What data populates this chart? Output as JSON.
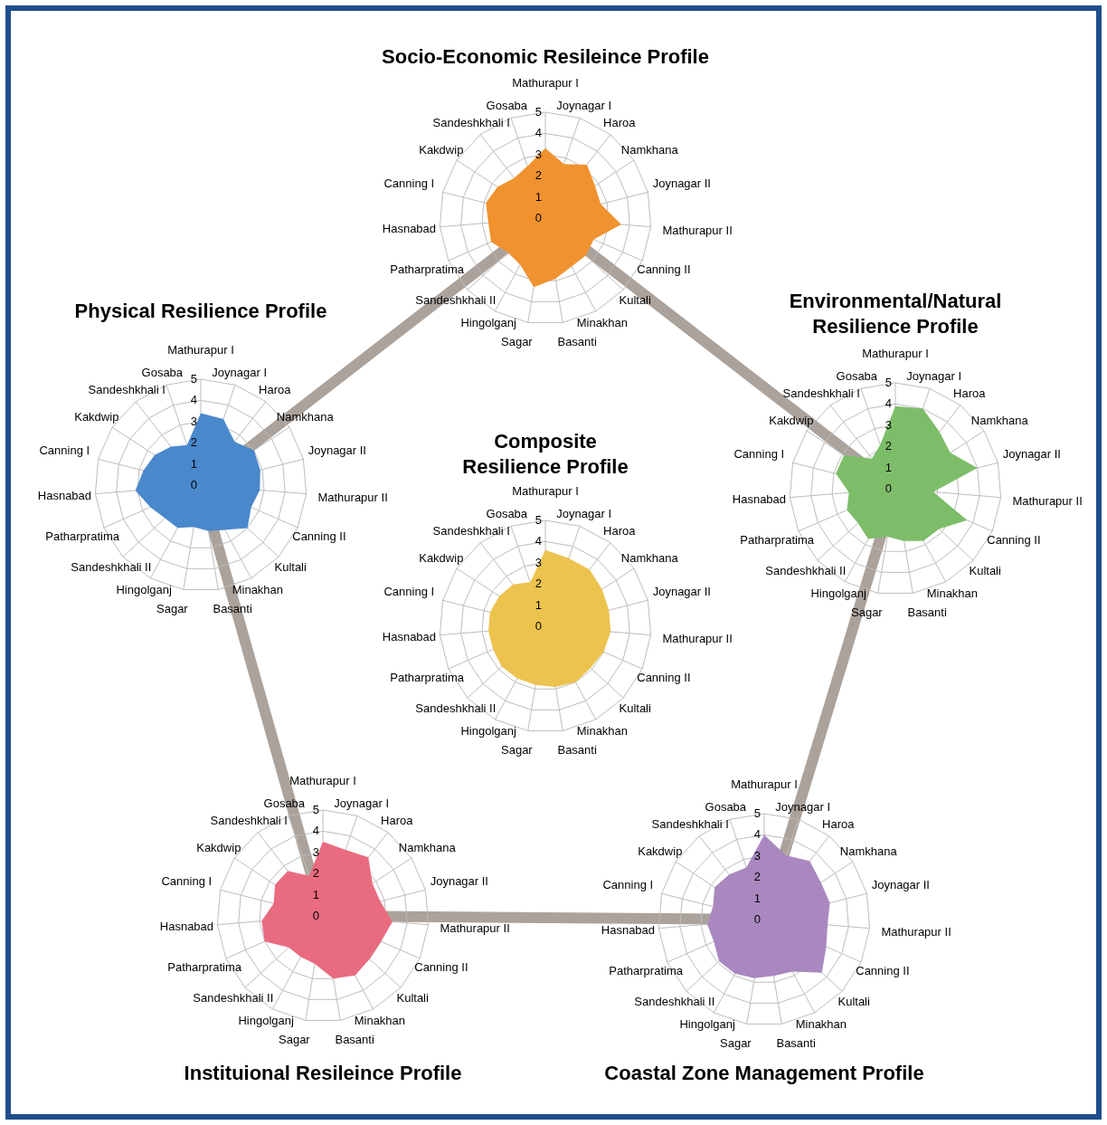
{
  "chart_data": [
    {
      "type": "radar",
      "title": "Socio-Economic Resileince Profile",
      "categories": [
        "Mathurapur I",
        "Joynagar I",
        "Haroa",
        "Namkhana",
        "Joynagar II",
        "Mathurapur II",
        "Canning II",
        "Kultali",
        "Minakhan",
        "Basanti",
        "Sagar",
        "Hingolganj",
        "Sandeshkhali II",
        "Patharpratima",
        "Hasnabad",
        "Canning I",
        "Kakdwip",
        "Sandeshkhali I",
        "Gosaba"
      ],
      "ylim": [
        0,
        5
      ],
      "yticks": [
        0,
        1,
        2,
        3,
        4,
        5
      ],
      "grid": true,
      "series": [
        {
          "color": "#f0922f",
          "values": [
            3.3,
            2.7,
            3.2,
            2.8,
            2.7,
            3.6,
            2.5,
            2.6,
            2.6,
            2.9,
            3.3,
            2.5,
            2.4,
            2.8,
            2.7,
            2.9,
            2.7,
            2.4,
            2.6
          ]
        }
      ]
    },
    {
      "type": "radar",
      "title": "Physical Resilience Profile",
      "categories": [
        "Mathurapur I",
        "Joynagar I",
        "Haroa",
        "Namkhana",
        "Joynagar II",
        "Mathurapur II",
        "Canning II",
        "Kultali",
        "Minakhan",
        "Basanti",
        "Sagar",
        "Hingolganj",
        "Sandeshkhali II",
        "Patharpratima",
        "Hasnabad",
        "Canning I",
        "Kakdwip",
        "Sandeshkhali I",
        "Gosaba"
      ],
      "ylim": [
        0,
        5
      ],
      "yticks": [
        0,
        1,
        2,
        3,
        4,
        5
      ],
      "grid": true,
      "series": [
        {
          "color": "#4a88cc",
          "values": [
            3.4,
            3.3,
            2.6,
            3.0,
            2.9,
            2.8,
            2.6,
            3.0,
            2.4,
            2.2,
            2.0,
            2.3,
            2.3,
            2.6,
            3.1,
            2.8,
            2.6,
            2.3,
            2.0
          ]
        }
      ]
    },
    {
      "type": "radar",
      "title": "Environmental/Natural Resilience Profile",
      "categories": [
        "Mathurapur I",
        "Joynagar I",
        "Haroa",
        "Namkhana",
        "Joynagar II",
        "Mathurapur II",
        "Canning II",
        "Kultali",
        "Minakhan",
        "Basanti",
        "Sagar",
        "Hingolganj",
        "Sandeshkhali II",
        "Patharpratima",
        "Hasnabad",
        "Canning I",
        "Kakdwip",
        "Sandeshkhali I",
        "Gosaba"
      ],
      "ylim": [
        0,
        5
      ],
      "yticks": [
        0,
        1,
        2,
        3,
        4,
        5
      ],
      "grid": true,
      "series": [
        {
          "color": "#7dbd6a",
          "values": [
            3.9,
            4.0,
            3.4,
            3.1,
            4.0,
            1.8,
            3.7,
            2.8,
            2.8,
            2.5,
            2.3,
            2.7,
            2.4,
            2.5,
            2.2,
            2.9,
            2.9,
            1.8,
            2.2
          ]
        }
      ]
    },
    {
      "type": "radar",
      "title": "Composite Resilience Profile",
      "categories": [
        "Mathurapur I",
        "Joynagar I",
        "Haroa",
        "Namkhana",
        "Joynagar II",
        "Mathurapur II",
        "Canning II",
        "Kultali",
        "Minakhan",
        "Basanti",
        "Sagar",
        "Hingolganj",
        "Sandeshkhali II",
        "Patharpratima",
        "Hasnabad",
        "Canning I",
        "Kakdwip",
        "Sandeshkhali I",
        "Gosaba"
      ],
      "ylim": [
        0,
        5
      ],
      "yticks": [
        0,
        1,
        2,
        3,
        4,
        5
      ],
      "grid": true,
      "series": [
        {
          "color": "#edc34f",
          "values": [
            3.6,
            3.4,
            3.4,
            3.2,
            3.1,
            3.1,
            3.0,
            2.9,
            3.0,
            2.9,
            2.8,
            2.8,
            2.8,
            2.7,
            2.7,
            2.7,
            2.6,
            2.5,
            2.2
          ]
        }
      ]
    },
    {
      "type": "radar",
      "title": "Instituional Resileince Profile",
      "categories": [
        "Mathurapur I",
        "Joynagar I",
        "Haroa",
        "Namkhana",
        "Joynagar II",
        "Mathurapur II",
        "Canning II",
        "Kultali",
        "Minakhan",
        "Basanti",
        "Sagar",
        "Hingolganj",
        "Sandeshkhali II",
        "Patharpratima",
        "Hasnabad",
        "Canning I",
        "Kakdwip",
        "Sandeshkhali I",
        "Gosaba"
      ],
      "ylim": [
        0,
        5
      ],
      "yticks": [
        0,
        1,
        2,
        3,
        4,
        5
      ],
      "grid": true,
      "series": [
        {
          "color": "#e96b7f",
          "values": [
            3.5,
            3.3,
            3.5,
            2.8,
            2.8,
            3.3,
            3.0,
            3.0,
            3.2,
            3.0,
            2.3,
            2.2,
            2.2,
            3.0,
            2.9,
            2.4,
            2.7,
            2.7,
            2.0
          ]
        }
      ]
    },
    {
      "type": "radar",
      "title": "Coastal Zone Management Profile",
      "categories": [
        "Mathurapur I",
        "Joynagar I",
        "Haroa",
        "Namkhana",
        "Joynagar II",
        "Mathurapur II",
        "Canning II",
        "Kultali",
        "Minakhan",
        "Basanti",
        "Sagar",
        "Hingolganj",
        "Sandeshkhali II",
        "Patharpratima",
        "Hasnabad",
        "Canning I",
        "Kakdwip",
        "Sandeshkhali I",
        "Gosaba"
      ],
      "ylim": [
        0,
        5
      ],
      "yticks": [
        0,
        1,
        2,
        3,
        4,
        5
      ],
      "grid": true,
      "series": [
        {
          "color": "#a988c0",
          "values": [
            4.0,
            3.2,
            3.5,
            3.2,
            3.2,
            3.0,
            3.2,
            3.7,
            2.8,
            2.7,
            2.8,
            2.9,
            2.9,
            2.6,
            2.7,
            2.5,
            2.8,
            2.7,
            2.6
          ]
        }
      ]
    }
  ]
}
